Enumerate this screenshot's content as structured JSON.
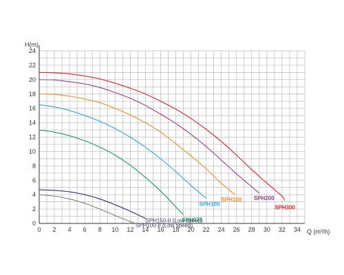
{
  "chart_data": {
    "type": "line",
    "ylabel": "H(m)",
    "xlabel": "Q (m³/h)",
    "xlim": [
      0,
      35
    ],
    "ylim": [
      0,
      24
    ],
    "xticks": [
      0,
      2,
      4,
      6,
      8,
      10,
      12,
      14,
      16,
      18,
      20,
      22,
      24,
      26,
      28,
      30,
      32,
      34
    ],
    "yticks": [
      0,
      2,
      4,
      6,
      8,
      10,
      12,
      14,
      16,
      18,
      20,
      22,
      24
    ],
    "grid": true,
    "series": [
      {
        "name": "SPH300",
        "color": "#e0202a",
        "x": [
          0,
          2,
          4,
          6,
          8,
          10,
          12,
          14,
          16,
          18,
          20,
          22,
          24,
          26,
          28,
          30,
          32,
          32.3
        ],
        "values": [
          21.0,
          20.95,
          20.8,
          20.5,
          20.1,
          19.5,
          18.8,
          18.0,
          17.0,
          15.9,
          14.6,
          13.1,
          11.4,
          9.5,
          7.5,
          5.6,
          3.8,
          3.2
        ]
      },
      {
        "name": "SPH200",
        "color": "#9b3a8c",
        "x": [
          0,
          2,
          4,
          6,
          8,
          10,
          12,
          14,
          16,
          18,
          20,
          22,
          24,
          26,
          28,
          29
        ],
        "values": [
          20.0,
          19.95,
          19.7,
          19.4,
          18.9,
          18.2,
          17.4,
          16.4,
          15.2,
          13.9,
          12.4,
          10.7,
          8.8,
          6.9,
          5.1,
          4.2
        ]
      },
      {
        "name": "SPH150",
        "color": "#f08a1c",
        "x": [
          0,
          2,
          4,
          6,
          8,
          10,
          12,
          14,
          16,
          18,
          20,
          22,
          24,
          25.8
        ],
        "values": [
          18.0,
          17.95,
          17.7,
          17.3,
          16.8,
          16.0,
          15.1,
          14.0,
          12.7,
          11.1,
          9.4,
          7.6,
          5.6,
          4.0
        ]
      },
      {
        "name": "SPH100",
        "color": "#2aa6dc",
        "x": [
          0,
          2,
          4,
          6,
          8,
          10,
          12,
          14,
          16,
          18,
          20,
          22
        ],
        "values": [
          16.5,
          16.2,
          15.7,
          15.0,
          14.2,
          13.2,
          12.0,
          10.6,
          9.0,
          7.2,
          5.3,
          3.5
        ]
      },
      {
        "name": "SPH075",
        "color": "#1a9a5a",
        "x": [
          0,
          2,
          4,
          6,
          8,
          10,
          12,
          14,
          16,
          18,
          19
        ],
        "values": [
          13.0,
          12.7,
          12.2,
          11.5,
          10.6,
          9.5,
          8.1,
          6.4,
          4.5,
          2.3,
          1.2
        ]
      },
      {
        "name": "SPH150-II (Low speed)",
        "color": "#2e2f7a",
        "x": [
          0,
          2,
          4,
          6,
          8,
          10,
          12,
          14
        ],
        "values": [
          4.7,
          4.6,
          4.4,
          4.0,
          3.4,
          2.6,
          1.7,
          0.7
        ]
      },
      {
        "name": "SPH100-II (Low speed)",
        "color": "#8a7a7a",
        "x": [
          0,
          2,
          4,
          6,
          8,
          10,
          12.5
        ],
        "values": [
          4.0,
          3.8,
          3.4,
          2.8,
          2.0,
          1.1,
          0.05
        ]
      }
    ]
  }
}
